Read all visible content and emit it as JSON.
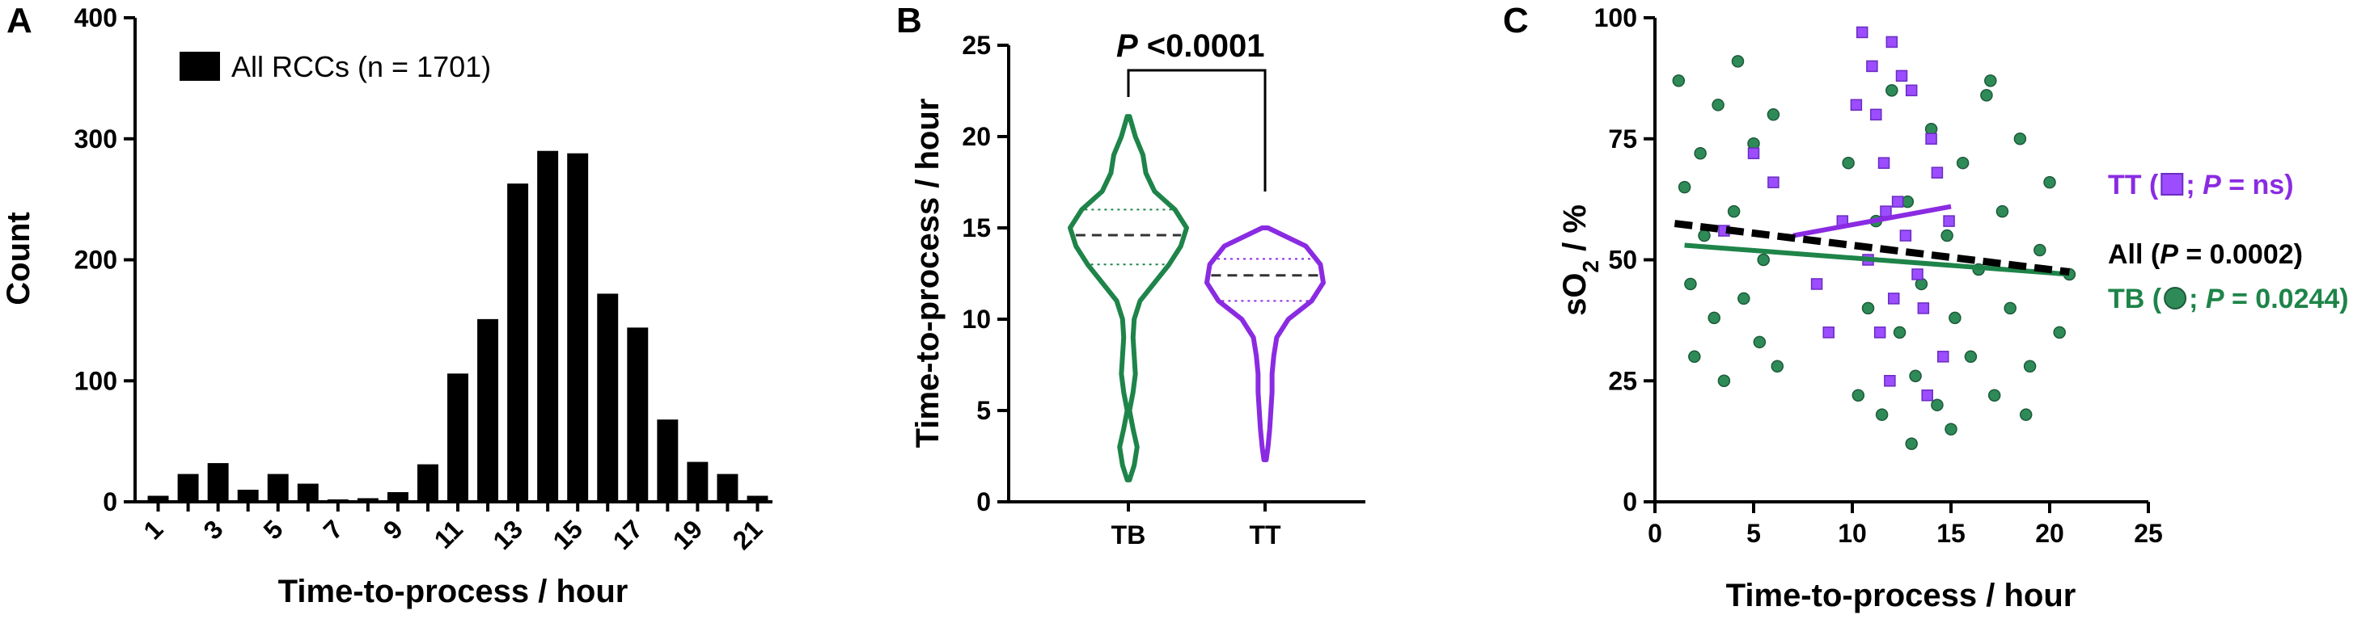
{
  "chart_data": [
    {
      "type": "bar",
      "panel": "A",
      "xlabel": "Time-to-process / hour",
      "ylabel": "Count",
      "categories": [
        "1",
        null,
        "3",
        null,
        "5",
        null,
        "7",
        null,
        "9",
        null,
        "11",
        null,
        "13",
        null,
        "15",
        null,
        "17",
        null,
        "19",
        null,
        "21"
      ],
      "series": [
        {
          "name": "All RCCs (n = 1701)",
          "color": "#000000",
          "values": [
            5,
            23,
            32,
            10,
            23,
            15,
            2,
            3,
            8,
            31,
            106,
            151,
            263,
            290,
            288,
            172,
            144,
            68,
            33,
            23,
            5
          ]
        }
      ],
      "ylim": [
        0,
        400
      ],
      "yticks": [
        0,
        100,
        200,
        300,
        400
      ]
    },
    {
      "type": "violin",
      "panel": "B",
      "ylabel": "Time-to-process / hour",
      "categories": [
        "TB",
        "TT"
      ],
      "groups": [
        {
          "color": "#1e8449",
          "median": 14.6,
          "q1": 13.0,
          "q3": 16.0,
          "y": [
            1.2,
            2,
            3,
            4,
            5,
            6,
            7,
            8,
            9,
            10,
            11,
            12,
            13,
            14,
            15,
            16,
            17,
            18,
            19,
            20,
            21.1
          ],
          "density": [
            0.02,
            0.1,
            0.15,
            0.08,
            0.02,
            0.08,
            0.12,
            0.1,
            0.08,
            0.1,
            0.2,
            0.45,
            0.7,
            0.9,
            1.0,
            0.8,
            0.45,
            0.3,
            0.25,
            0.12,
            0.02
          ]
        },
        {
          "color": "#8a2be2",
          "median": 12.4,
          "q1": 11.0,
          "q3": 13.3,
          "y": [
            2.3,
            3,
            4,
            5,
            6,
            7,
            8,
            9,
            10,
            11,
            12,
            13,
            14,
            15
          ],
          "density": [
            0.02,
            0.05,
            0.08,
            0.1,
            0.12,
            0.12,
            0.15,
            0.2,
            0.4,
            0.8,
            1.0,
            0.95,
            0.7,
            0.05
          ]
        }
      ],
      "annotation": [
        {
          "text": "P",
          "italic": true
        },
        {
          "text": " <0.0001",
          "italic": false
        }
      ],
      "ylim": [
        0,
        25
      ],
      "yticks": [
        0,
        5,
        10,
        15,
        20,
        25
      ]
    },
    {
      "type": "scatter",
      "panel": "C",
      "xlabel": "Time-to-process / hour",
      "ylabel": [
        {
          "text": "sO"
        },
        {
          "text": "2",
          "sub": true
        },
        {
          "text": " / %"
        }
      ],
      "xlim": [
        0,
        25
      ],
      "xticks": [
        0,
        5,
        10,
        15,
        20,
        25
      ],
      "ylim": [
        0,
        100
      ],
      "yticks": [
        0,
        25,
        50,
        75,
        100
      ],
      "series": [
        {
          "color": "#2e8b57",
          "marker": "circle",
          "label": [
            {
              "text": "TB ("
            },
            {
              "text": "; "
            },
            {
              "text": "P",
              "italic": true
            },
            {
              "text": " = 0.0244)"
            }
          ],
          "x": [
            1.2,
            1.5,
            1.8,
            2,
            2.3,
            2.5,
            3,
            3.2,
            3.5,
            4,
            4.2,
            4.5,
            5,
            5.3,
            5.5,
            6,
            6.2,
            9.8,
            10.3,
            10.8,
            11.2,
            11.5,
            12,
            12.4,
            12.8,
            13.2,
            13.5,
            14,
            14.3,
            14.8,
            15.2,
            15.6,
            16,
            16.4,
            16.8,
            17.2,
            17.6,
            18,
            18.5,
            19,
            19.5,
            20,
            20.5,
            21,
            15,
            13,
            17,
            18.8
          ],
          "y": [
            87,
            65,
            45,
            30,
            72,
            55,
            38,
            82,
            25,
            60,
            91,
            42,
            74,
            33,
            50,
            80,
            28,
            70,
            22,
            40,
            58,
            18,
            85,
            35,
            62,
            26,
            45,
            77,
            20,
            55,
            38,
            70,
            30,
            48,
            84,
            22,
            60,
            40,
            75,
            28,
            52,
            66,
            35,
            47,
            15,
            12,
            87,
            18
          ],
          "fit": {
            "x": [
              1.5,
              21
            ],
            "y": [
              53,
              47
            ]
          }
        },
        {
          "color": "#9b4dff",
          "marker": "square",
          "label": [
            {
              "text": "TT ("
            },
            {
              "text": "; "
            },
            {
              "text": "P",
              "italic": true
            },
            {
              "text": " = ns)"
            }
          ],
          "x": [
            10.5,
            11,
            11.2,
            11.6,
            12,
            12.3,
            12.7,
            13,
            13.3,
            13.6,
            14,
            14.3,
            14.6,
            11.4,
            10.8,
            12.1,
            9.5,
            8.2,
            6,
            5,
            3.5,
            11.9,
            13.8,
            10.2,
            12.5,
            14.9,
            8.8,
            11.7
          ],
          "y": [
            97,
            90,
            80,
            70,
            95,
            62,
            55,
            85,
            47,
            40,
            75,
            68,
            30,
            35,
            50,
            42,
            58,
            45,
            66,
            72,
            56,
            25,
            22,
            82,
            88,
            58,
            35,
            60
          ],
          "fit": {
            "x": [
              7,
              15
            ],
            "y": [
              55,
              61
            ]
          }
        },
        {
          "color": "#000000",
          "dashed": true,
          "label": [
            {
              "text": "All ("
            },
            {
              "text": "P",
              "italic": true
            },
            {
              "text": " = 0.0002)"
            }
          ],
          "fit": {
            "x": [
              1,
              21
            ],
            "y": [
              57.5,
              47.5
            ]
          }
        }
      ]
    }
  ]
}
